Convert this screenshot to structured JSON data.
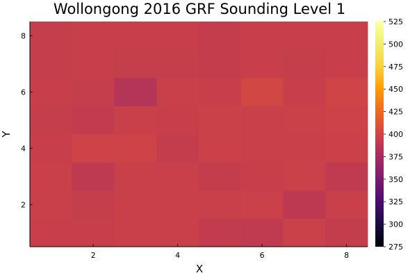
{
  "chart_data": {
    "type": "heatmap",
    "title": "Wollongong 2016 GRF Sounding Level 1",
    "xlabel": "X",
    "ylabel": "Y",
    "x": [
      1,
      2,
      3,
      4,
      5,
      6,
      7,
      8
    ],
    "y": [
      1,
      2,
      3,
      4,
      5,
      6,
      7,
      8
    ],
    "xlim": [
      0.5,
      8.5
    ],
    "ylim": [
      0.5,
      8.5
    ],
    "xticks": [
      2,
      4,
      6,
      8
    ],
    "yticks": [
      2,
      4,
      6,
      8
    ],
    "colorbar": {
      "min": 275,
      "max": 525,
      "ticks": [
        275,
        300,
        325,
        350,
        375,
        400,
        425,
        450,
        475,
        500,
        525
      ],
      "colormap": "inferno"
    },
    "values": [
      [
        395,
        395,
        396,
        396,
        392,
        391,
        397,
        393
      ],
      [
        396,
        394,
        396,
        396,
        396,
        397,
        389,
        396
      ],
      [
        396,
        390,
        396,
        396,
        393,
        395,
        397,
        391
      ],
      [
        395,
        399,
        399,
        393,
        397,
        396,
        396,
        397
      ],
      [
        394,
        392,
        396,
        395,
        397,
        396,
        397,
        398
      ],
      [
        395,
        394,
        384,
        396,
        395,
        402,
        395,
        400
      ],
      [
        394,
        395,
        394,
        394,
        393,
        395,
        394,
        395
      ],
      [
        394,
        395,
        395,
        395,
        393,
        395,
        395,
        395
      ]
    ]
  }
}
